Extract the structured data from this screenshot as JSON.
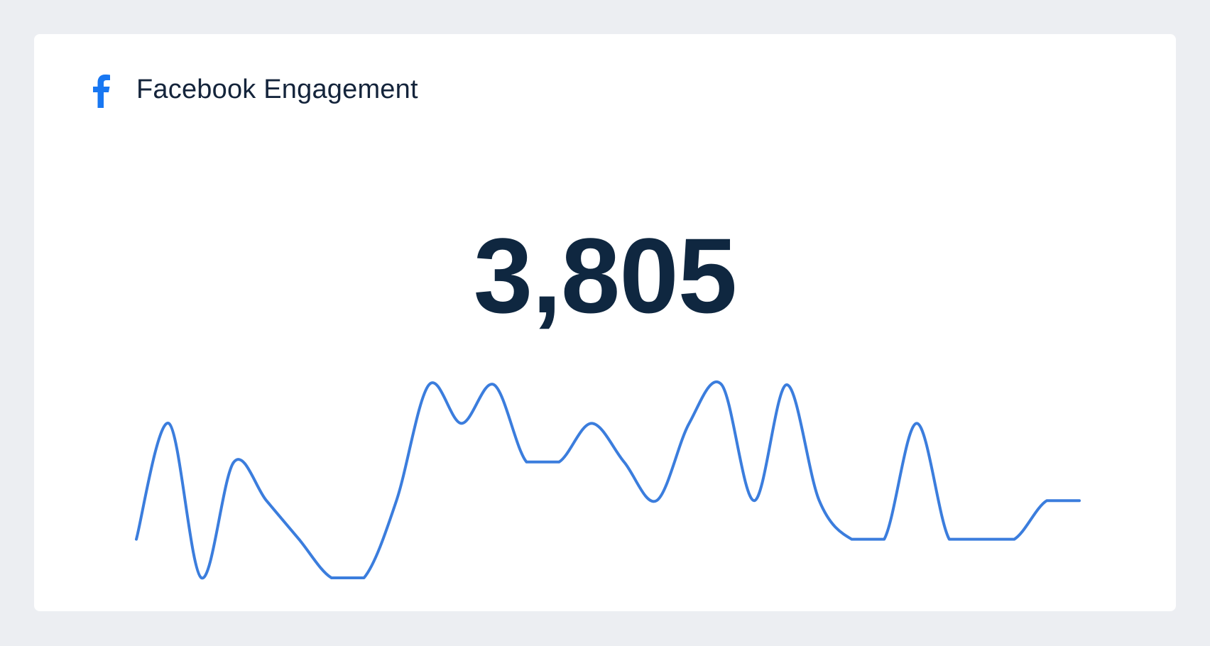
{
  "widget": {
    "title": "Facebook Engagement",
    "icon": "facebook-icon",
    "value": "3,805"
  },
  "colors": {
    "brand": "#1877f2",
    "line": "#3b7ddd",
    "text": "#0f2740"
  },
  "chart_data": {
    "type": "line",
    "x": [
      0,
      1,
      2,
      3,
      4,
      5,
      6,
      7,
      8,
      9,
      10,
      11,
      12,
      13,
      14,
      15,
      16,
      17,
      18,
      19,
      20,
      21,
      22,
      23,
      24,
      25,
      26,
      27,
      28,
      29
    ],
    "series": [
      {
        "values": [
          1,
          4,
          0,
          3,
          2,
          1,
          0,
          0,
          2,
          5,
          4,
          5,
          3,
          3,
          4,
          3,
          2,
          4,
          5,
          2,
          5,
          2,
          1,
          1,
          4,
          1,
          1,
          1,
          2,
          2
        ]
      }
    ],
    "ylim": [
      0,
      5
    ],
    "grid": false,
    "legend": "none"
  }
}
